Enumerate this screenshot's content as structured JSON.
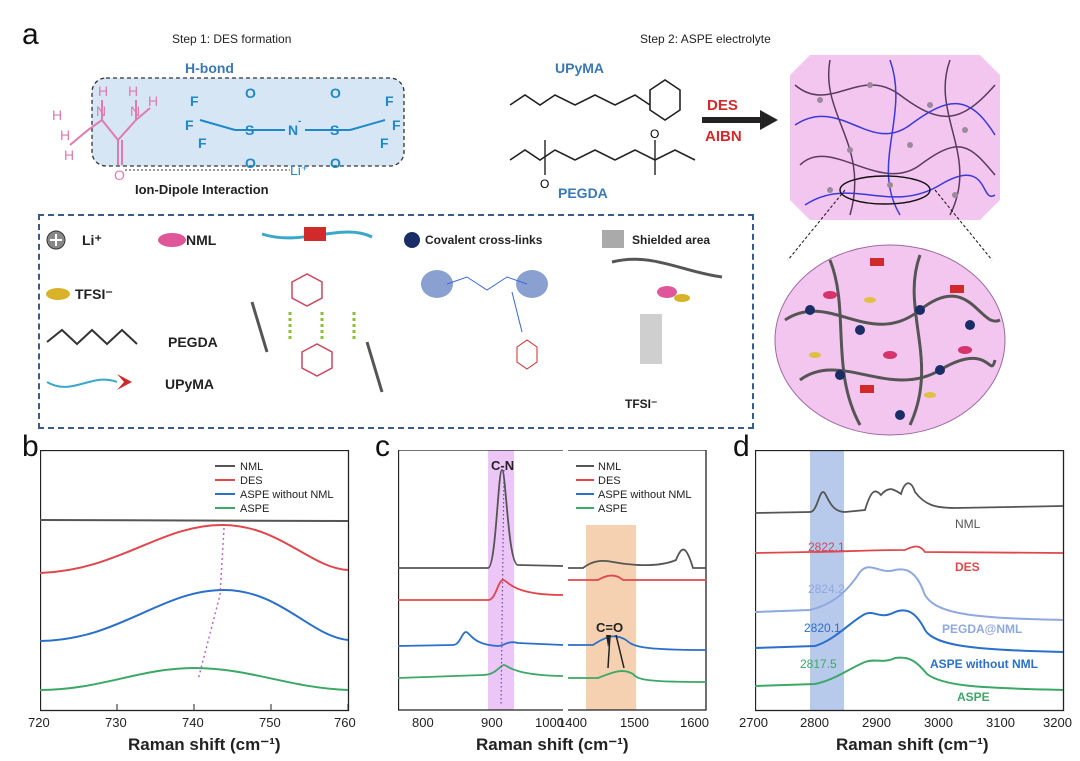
{
  "panel_a": {
    "letter": "a",
    "step1_title": "Step 1: DES formation",
    "step2_title": "Step 2: ASPE electrolyte",
    "hbond_label": "H-bond",
    "ion_dipole_label": "Ion-Dipole Interaction",
    "li_label": "Li⁺",
    "upyma_label": "UPyMA",
    "pegda_label": "PEGDA",
    "des_label": "DES",
    "aibn_label": "AIBN",
    "legend": {
      "li": "Li⁺",
      "nml": "NML",
      "tfsi": "TFSI⁻",
      "pegda": "PEGDA",
      "upyma": "UPyMA",
      "crosslinks": "Covalent cross-links",
      "shielded": "Shielded area",
      "tfsi_small": "TFSI⁻"
    }
  },
  "panel_b": {
    "letter": "b",
    "xlabel": "Raman shift (cm⁻¹)",
    "xticks": [
      "720",
      "730",
      "740",
      "750",
      "760"
    ],
    "legend": [
      "NML",
      "DES",
      "ASPE without NML",
      "ASPE"
    ]
  },
  "panel_c": {
    "letter": "c",
    "xlabel": "Raman shift (cm⁻¹)",
    "xticks": [
      "800",
      "900",
      "1000",
      "1400",
      "1500",
      "1600"
    ],
    "cn_label": "C-N",
    "co_label": "C=O",
    "legend": [
      "NML",
      "DES",
      "ASPE without NML",
      "ASPE"
    ]
  },
  "panel_d": {
    "letter": "d",
    "xlabel": "Raman shift (cm⁻¹)",
    "xticks": [
      "2700",
      "2800",
      "2900",
      "3000",
      "3100",
      "3200"
    ],
    "peak_values": [
      "2822.1",
      "2824.2",
      "2820.1",
      "2817.5"
    ],
    "curve_labels": [
      "NML",
      "DES",
      "PEGDA@NML",
      "ASPE without NML",
      "ASPE"
    ]
  },
  "colors": {
    "nml": "#555555",
    "des": "#e0474c",
    "aspe_wo": "#2a6fc9",
    "aspe": "#3ca866",
    "pegda_nml": "#8fa8e0",
    "purple_band": "#d9a6f0",
    "orange_band": "#f3c9a4",
    "blue_band": "#9fb8e6"
  },
  "chart_data": [
    {
      "type": "line",
      "panel": "b",
      "xlabel": "Raman shift (cm⁻¹)",
      "xlim": [
        720,
        760
      ],
      "series": [
        {
          "name": "NML",
          "peak_x": null
        },
        {
          "name": "DES",
          "peak_x": 743.5
        },
        {
          "name": "ASPE without NML",
          "peak_x": 743.5
        },
        {
          "name": "ASPE",
          "peak_x": 740
        }
      ]
    },
    {
      "type": "line",
      "panel": "c",
      "xlabel": "Raman shift (cm⁻¹)",
      "xlim_left": [
        760,
        1000
      ],
      "xlim_right": [
        1400,
        1600
      ],
      "series": [
        {
          "name": "NML"
        },
        {
          "name": "DES"
        },
        {
          "name": "ASPE without NML"
        },
        {
          "name": "ASPE"
        }
      ]
    },
    {
      "type": "line",
      "panel": "d",
      "xlabel": "Raman shift (cm⁻¹)",
      "xlim": [
        2700,
        3200
      ],
      "series": [
        {
          "name": "NML",
          "peak_x": 2822.1
        },
        {
          "name": "DES",
          "peak_x": 2822.1
        },
        {
          "name": "PEGDA@NML",
          "peak_x": 2824.2
        },
        {
          "name": "ASPE without NML",
          "peak_x": 2820.1
        },
        {
          "name": "ASPE",
          "peak_x": 2817.5
        }
      ]
    }
  ]
}
